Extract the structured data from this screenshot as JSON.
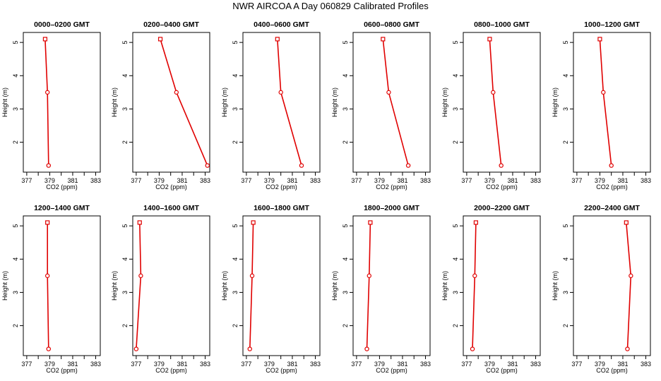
{
  "title": "NWR AIRCOA A  Day 060829  Calibrated Profiles",
  "colors": {
    "series": "#e00000",
    "axis": "#000000",
    "background": "#ffffff"
  },
  "chart_data": [
    {
      "type": "line",
      "title": "0000–0200 GMT",
      "xlabel": "CO2 (ppm)",
      "ylabel": "Height (m)",
      "xlim": [
        376.7,
        383.4
      ],
      "ylim": [
        1.1,
        5.3
      ],
      "xticks": [
        377,
        379,
        381,
        383
      ],
      "yticks": [
        2,
        3,
        4,
        5
      ],
      "x": [
        378.6,
        378.8,
        378.9
      ],
      "y": [
        5.1,
        3.5,
        1.3
      ]
    },
    {
      "type": "line",
      "title": "0200–0400 GMT",
      "xlabel": "CO2 (ppm)",
      "ylabel": "Height (m)",
      "xlim": [
        376.7,
        383.4
      ],
      "ylim": [
        1.1,
        5.3
      ],
      "xticks": [
        377,
        379,
        381,
        383
      ],
      "yticks": [
        2,
        3,
        4,
        5
      ],
      "x": [
        379.1,
        380.5,
        383.2
      ],
      "y": [
        5.1,
        3.5,
        1.3
      ]
    },
    {
      "type": "line",
      "title": "0400–0600 GMT",
      "xlabel": "CO2 (ppm)",
      "ylabel": "Height (m)",
      "xlim": [
        376.7,
        383.4
      ],
      "ylim": [
        1.1,
        5.3
      ],
      "xticks": [
        377,
        379,
        381,
        383
      ],
      "yticks": [
        2,
        3,
        4,
        5
      ],
      "x": [
        379.7,
        380.0,
        381.8
      ],
      "y": [
        5.1,
        3.5,
        1.3
      ]
    },
    {
      "type": "line",
      "title": "0600–0800 GMT",
      "xlabel": "CO2 (ppm)",
      "ylabel": "Height (m)",
      "xlim": [
        376.7,
        383.4
      ],
      "ylim": [
        1.1,
        5.3
      ],
      "xticks": [
        377,
        379,
        381,
        383
      ],
      "yticks": [
        2,
        3,
        4,
        5
      ],
      "x": [
        379.3,
        379.8,
        381.5
      ],
      "y": [
        5.1,
        3.5,
        1.3
      ]
    },
    {
      "type": "line",
      "title": "0800–1000 GMT",
      "xlabel": "CO2 (ppm)",
      "ylabel": "Height (m)",
      "xlim": [
        376.7,
        383.4
      ],
      "ylim": [
        1.1,
        5.3
      ],
      "xticks": [
        377,
        379,
        381,
        383
      ],
      "yticks": [
        2,
        3,
        4,
        5
      ],
      "x": [
        379.0,
        379.3,
        380.0
      ],
      "y": [
        5.1,
        3.5,
        1.3
      ]
    },
    {
      "type": "line",
      "title": "1000–1200 GMT",
      "xlabel": "CO2 (ppm)",
      "ylabel": "Height (m)",
      "xlim": [
        376.7,
        383.4
      ],
      "ylim": [
        1.1,
        5.3
      ],
      "xticks": [
        377,
        379,
        381,
        383
      ],
      "yticks": [
        2,
        3,
        4,
        5
      ],
      "x": [
        379.0,
        379.3,
        380.0
      ],
      "y": [
        5.1,
        3.5,
        1.3
      ]
    },
    {
      "type": "line",
      "title": "1200–1400 GMT",
      "xlabel": "CO2 (ppm)",
      "ylabel": "Height (m)",
      "xlim": [
        376.7,
        383.4
      ],
      "ylim": [
        1.1,
        5.3
      ],
      "xticks": [
        377,
        379,
        381,
        383
      ],
      "yticks": [
        2,
        3,
        4,
        5
      ],
      "x": [
        378.8,
        378.8,
        378.9
      ],
      "y": [
        5.1,
        3.5,
        1.3
      ]
    },
    {
      "type": "line",
      "title": "1400–1600 GMT",
      "xlabel": "CO2 (ppm)",
      "ylabel": "Height (m)",
      "xlim": [
        376.7,
        383.4
      ],
      "ylim": [
        1.1,
        5.3
      ],
      "xticks": [
        377,
        379,
        381,
        383
      ],
      "yticks": [
        2,
        3,
        4,
        5
      ],
      "x": [
        377.3,
        377.4,
        377.0
      ],
      "y": [
        5.1,
        3.5,
        1.3
      ]
    },
    {
      "type": "line",
      "title": "1600–1800 GMT",
      "xlabel": "CO2 (ppm)",
      "ylabel": "Height (m)",
      "xlim": [
        376.7,
        383.4
      ],
      "ylim": [
        1.1,
        5.3
      ],
      "xticks": [
        377,
        379,
        381,
        383
      ],
      "yticks": [
        2,
        3,
        4,
        5
      ],
      "x": [
        377.6,
        377.5,
        377.3
      ],
      "y": [
        5.1,
        3.5,
        1.3
      ]
    },
    {
      "type": "line",
      "title": "1800–2000 GMT",
      "xlabel": "CO2 (ppm)",
      "ylabel": "Height (m)",
      "xlim": [
        376.7,
        383.4
      ],
      "ylim": [
        1.1,
        5.3
      ],
      "xticks": [
        377,
        379,
        381,
        383
      ],
      "yticks": [
        2,
        3,
        4,
        5
      ],
      "x": [
        378.2,
        378.1,
        377.9
      ],
      "y": [
        5.1,
        3.5,
        1.3
      ]
    },
    {
      "type": "line",
      "title": "2000–2200 GMT",
      "xlabel": "CO2 (ppm)",
      "ylabel": "Height (m)",
      "xlim": [
        376.7,
        383.4
      ],
      "ylim": [
        1.1,
        5.3
      ],
      "xticks": [
        377,
        379,
        381,
        383
      ],
      "yticks": [
        2,
        3,
        4,
        5
      ],
      "x": [
        377.8,
        377.7,
        377.5
      ],
      "y": [
        5.1,
        3.5,
        1.3
      ]
    },
    {
      "type": "line",
      "title": "2200–2400 GMT",
      "xlabel": "CO2 (ppm)",
      "ylabel": "Height (m)",
      "xlim": [
        376.7,
        383.4
      ],
      "ylim": [
        1.1,
        5.3
      ],
      "xticks": [
        377,
        379,
        381,
        383
      ],
      "yticks": [
        2,
        3,
        4,
        5
      ],
      "x": [
        381.3,
        381.7,
        381.4
      ],
      "y": [
        5.1,
        3.5,
        1.3
      ]
    }
  ]
}
